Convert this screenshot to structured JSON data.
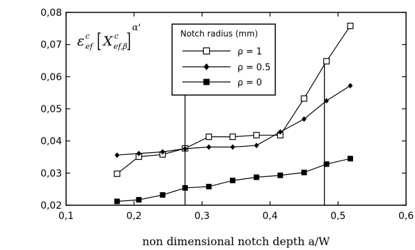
{
  "chart_data": {
    "type": "line",
    "xlabel": "non dimensional notch depth a/W",
    "ylabel": {
      "main": "ε",
      "main_sup": "c",
      "main_sub": "ef",
      "bracket_main": "X",
      "bracket_sup": "c",
      "bracket_sub": "ef,β",
      "exponent": "α'"
    },
    "xlim": [
      0.1,
      0.6
    ],
    "ylim": [
      0.02,
      0.08
    ],
    "xticks": [
      "0,1",
      "0,2",
      "0,3",
      "0,4",
      "0,5",
      "0,6"
    ],
    "xtick_values": [
      0.1,
      0.2,
      0.3,
      0.4,
      0.5,
      0.6
    ],
    "yticks": [
      "0,02",
      "0,03",
      "0,04",
      "0,05",
      "0,06",
      "0,07",
      "0,08"
    ],
    "ytick_values": [
      0.02,
      0.03,
      0.04,
      0.05,
      0.06,
      0.07,
      0.08
    ],
    "legend_title": "Notch radius (mm)",
    "legend_position": "top-center",
    "grid": false,
    "series": [
      {
        "name": "ρ = 1",
        "marker": "open-square",
        "x": [
          0.175,
          0.207,
          0.242,
          0.275,
          0.31,
          0.345,
          0.38,
          0.415,
          0.45,
          0.483,
          0.518
        ],
        "y": [
          0.0298,
          0.0351,
          0.0358,
          0.0377,
          0.0413,
          0.0413,
          0.0418,
          0.0418,
          0.0532,
          0.0648,
          0.0758
        ]
      },
      {
        "name": "ρ = 0.5",
        "marker": "filled-diamond",
        "x": [
          0.175,
          0.207,
          0.242,
          0.275,
          0.31,
          0.345,
          0.38,
          0.415,
          0.45,
          0.483,
          0.518
        ],
        "y": [
          0.0356,
          0.0361,
          0.0366,
          0.0376,
          0.0381,
          0.0381,
          0.0386,
          0.0428,
          0.0468,
          0.0525,
          0.0572
        ]
      },
      {
        "name": "ρ = 0",
        "marker": "filled-square",
        "x": [
          0.175,
          0.207,
          0.242,
          0.275,
          0.31,
          0.345,
          0.38,
          0.415,
          0.45,
          0.483,
          0.518
        ],
        "y": [
          0.0212,
          0.0217,
          0.0232,
          0.0254,
          0.0258,
          0.0277,
          0.0287,
          0.0293,
          0.0302,
          0.0328,
          0.0345
        ]
      }
    ],
    "vertical_markers": [
      0.275,
      0.48
    ]
  }
}
